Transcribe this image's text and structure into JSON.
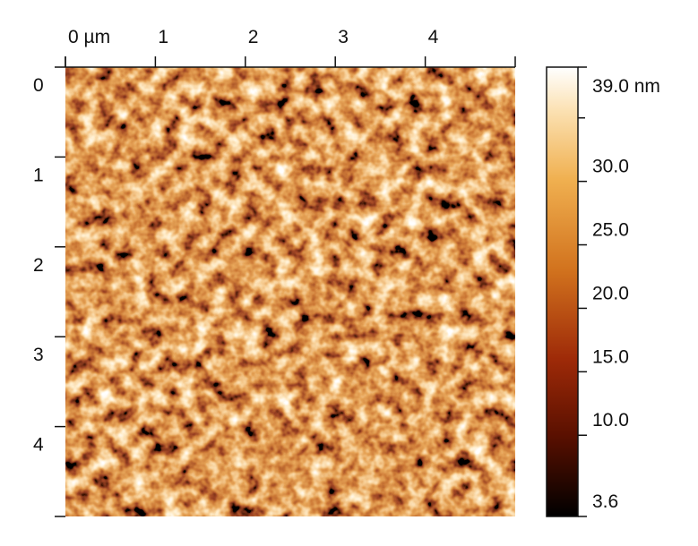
{
  "chart_data": {
    "type": "image",
    "xlim": [
      0,
      5
    ],
    "xticks": [
      {
        "value": 0,
        "label": "0 µm"
      },
      1,
      2,
      3,
      4
    ],
    "ylim": [
      0,
      5
    ],
    "yticks": [
      0,
      1,
      2,
      3,
      4
    ],
    "clim": [
      3.6,
      39
    ],
    "cticks": [
      {
        "value": 39,
        "label": "39.0 nm"
      },
      {
        "value": 30,
        "label": "30.0"
      },
      {
        "value": 25,
        "label": "25.0"
      },
      {
        "value": 20,
        "label": "20.0"
      },
      {
        "value": 15,
        "label": "15.0"
      },
      {
        "value": 10,
        "label": "10.0"
      },
      3.6
    ],
    "cminor_ticks": [
      35
    ]
  }
}
